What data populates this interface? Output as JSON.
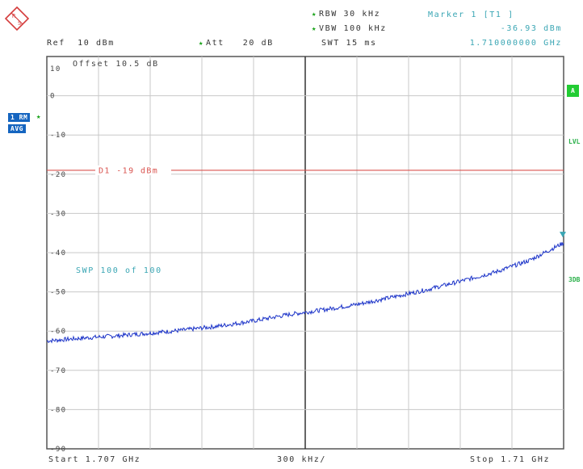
{
  "header": {
    "ref_label": "Ref",
    "ref_value": "10 dBm",
    "att_label": "Att",
    "att_value": "20 dB",
    "rbw_label": "RBW",
    "rbw_value": "30 kHz",
    "vbw_label": "VBW",
    "vbw_value": "100 kHz",
    "swt_label": "SWT",
    "swt_value": "15 ms",
    "marker_title": "Marker 1 [T1 ]",
    "marker_level": "-36.93 dBm",
    "marker_freq": "1.710000000 GHz"
  },
  "logo": {
    "text_r": "R",
    "text_s": "S"
  },
  "side_labels": {
    "trace_mode_1": "1 RM",
    "trace_mode_2": "AVG",
    "right_a": "A",
    "right_lvl": "LVL",
    "right_3db": "3DB"
  },
  "footer": {
    "start": "Start 1.707 GHz",
    "span_per_div": "300 kHz/",
    "stop": "Stop 1.71 GHz"
  },
  "colors": {
    "trace": "#1a32c8",
    "limit_line": "#d9534f",
    "annotation": "#3aa6b4",
    "grid": "#c8c8c8",
    "frame": "#555555",
    "flag_blue": "#1565c0",
    "flag_green": "#22cc33"
  },
  "chart_data": {
    "type": "line",
    "x_start_ghz": 1.707,
    "x_stop_ghz": 1.71,
    "ylim": [
      -90,
      10
    ],
    "y_ticks": [
      10,
      0,
      -10,
      -20,
      -30,
      -40,
      -50,
      -60,
      -70,
      -80,
      -90
    ],
    "offset_text": "Offset  10.5 dB",
    "sweep_text": "SWP   100 of   100",
    "limit_line": {
      "label": "D1 -19 dBm",
      "value": -19
    },
    "marker": {
      "x_ghz": 1.71,
      "y": -36.93
    },
    "series": [
      {
        "x": [
          1.707,
          1.7072,
          1.7074,
          1.7076,
          1.7078,
          1.708,
          1.7082,
          1.7084,
          1.7086,
          1.7088,
          1.709,
          1.7092,
          1.7094,
          1.7096,
          1.7098,
          1.71
        ],
        "values": [
          -62.5,
          -61.8,
          -61.2,
          -60.5,
          -59.7,
          -58.7,
          -57.4,
          -55.8,
          -54.6,
          -53.2,
          -51.4,
          -49.5,
          -47.3,
          -45.0,
          -42.0,
          -37.5
        ]
      }
    ]
  }
}
